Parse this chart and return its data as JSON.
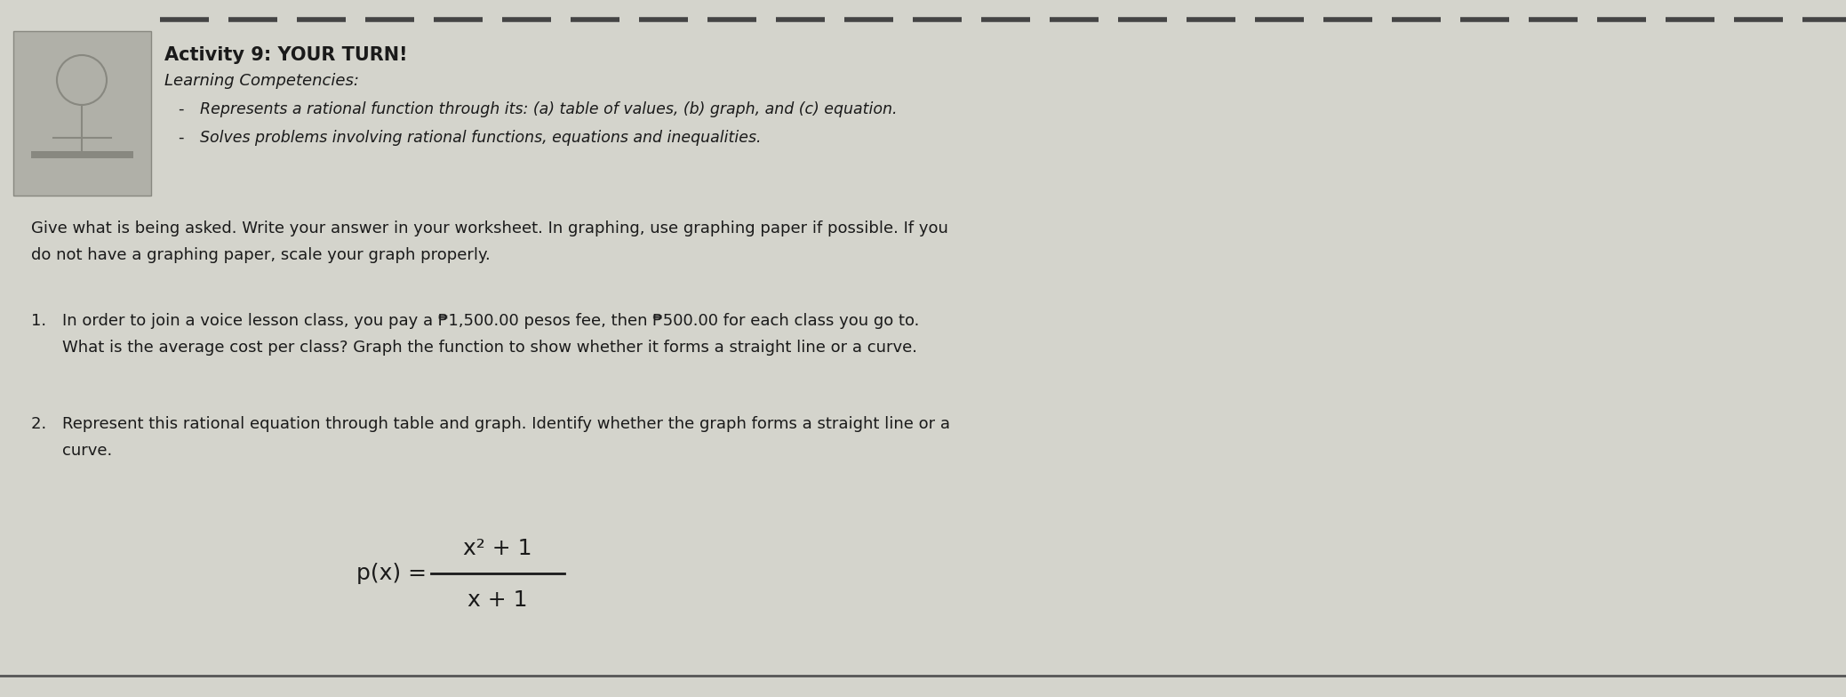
{
  "background_color": "#d4d4cc",
  "title_bold": "Activity 9: YOUR TURN!",
  "title_italic": "Learning Competencies:",
  "bullet1": "Represents a rational function through its: (a) table of values, (b) graph, and (c) equation.",
  "bullet2": "Solves problems involving rational functions, equations and inequalities.",
  "body1_line1": "Give what is being asked. Write your answer in your worksheet. In graphing, use graphing paper if possible. If you",
  "body1_line2": "do not have a graphing paper, scale your graph properly.",
  "problem1_label": "1. ",
  "problem1_line1": "In order to join a voice lesson class, you pay a ₱1,500.00 pesos fee, then ₱500.00 for each class you go to.",
  "problem1_line2": "What is the average cost per class? Graph the function to show whether it forms a straight line or a curve.",
  "problem2_label": "2. ",
  "problem2_line1": "Represent this rational equation through table and graph. Identify whether the graph forms a straight line or a",
  "problem2_line2": "curve.",
  "equation_numerator": "x² + 1",
  "equation_denominator": "x + 1",
  "equation_prefix": "p(x) =",
  "dashed_line_color": "#444444",
  "bottom_line_color": "#555555",
  "text_color": "#1a1a1a",
  "figure_box_color": "#b0b0a8"
}
